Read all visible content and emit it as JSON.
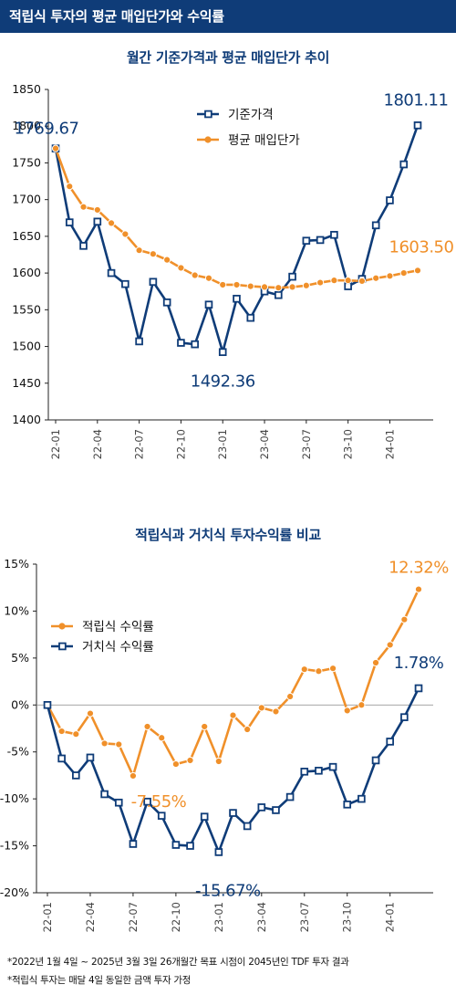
{
  "banner": {
    "title": "적립식 투자의 평균 매입단가와 수익률"
  },
  "colors": {
    "navy": "#0f3c78",
    "orange": "#f0902a",
    "axis": "#222222",
    "grid": "#d9d9d9",
    "banner": "#0f3c78"
  },
  "chart_data": [
    {
      "type": "line",
      "title": "월간 기준가격과 평균 매입단가 추이",
      "xlabel": "",
      "ylabel": "",
      "ylim": [
        1400,
        1850
      ],
      "yticks": [
        "1850",
        "1800",
        "1750",
        "1700",
        "1650",
        "1600",
        "1550",
        "1500",
        "1450",
        "1400"
      ],
      "x_tick_labels": [
        "22-01",
        "22-04",
        "22-07",
        "22-10",
        "23-01",
        "23-04",
        "23-07",
        "23-10",
        "24-01"
      ],
      "grid": false,
      "legend": "top-center",
      "x": [
        "22-01",
        "22-02",
        "22-03",
        "22-04",
        "22-05",
        "22-06",
        "22-07",
        "22-08",
        "22-09",
        "22-10",
        "22-11",
        "22-12",
        "23-01",
        "23-02",
        "23-03",
        "23-04",
        "23-05",
        "23-06",
        "23-07",
        "23-08",
        "23-09",
        "23-10",
        "23-11",
        "23-12",
        "24-01",
        "24-02",
        "24-03"
      ],
      "series": [
        {
          "name": "기준가격",
          "color": "#0f3c78",
          "marker": "square",
          "values": [
            1769.67,
            1669,
            1637,
            1670,
            1600,
            1585,
            1507,
            1588,
            1560,
            1505,
            1503,
            1557,
            1492.36,
            1565,
            1539,
            1575,
            1570,
            1595,
            1644,
            1645,
            1652,
            1582,
            1592,
            1665,
            1699,
            1748,
            1801.11
          ]
        },
        {
          "name": "평균 매입단가",
          "color": "#f0902a",
          "marker": "circle",
          "values": [
            1769.67,
            1718,
            1690,
            1686,
            1668,
            1653,
            1631,
            1626,
            1618,
            1607,
            1597,
            1593,
            1584,
            1584,
            1582,
            1581,
            1580,
            1581,
            1583,
            1587,
            1590,
            1590,
            1589,
            1593,
            1596,
            1600,
            1603.5
          ]
        }
      ],
      "annotations": [
        {
          "text": "1769.67",
          "series": 0,
          "index": 0,
          "color": "#0f3c78"
        },
        {
          "text": "1492.36",
          "series": 0,
          "index": 12,
          "color": "#0f3c78"
        },
        {
          "text": "1801.11",
          "series": 0,
          "index": 26,
          "color": "#0f3c78"
        },
        {
          "text": "1603.50",
          "series": 1,
          "index": 26,
          "color": "#f0902a"
        }
      ]
    },
    {
      "type": "line",
      "title": "적립식과 거치식 투자수익률 비교",
      "xlabel": "",
      "ylabel": "",
      "ylim": [
        -20,
        15
      ],
      "yticks": [
        "15%",
        "10%",
        "5%",
        "0%",
        "-5%",
        "-10%",
        "-15%",
        "-20%"
      ],
      "x_tick_labels": [
        "22-01",
        "22-04",
        "22-07",
        "22-10",
        "23-01",
        "23-04",
        "23-07",
        "23-10",
        "24-01"
      ],
      "grid": false,
      "legend": "top-left",
      "x": [
        "22-01",
        "22-02",
        "22-03",
        "22-04",
        "22-05",
        "22-06",
        "22-07",
        "22-08",
        "22-09",
        "22-10",
        "22-11",
        "22-12",
        "23-01",
        "23-02",
        "23-03",
        "23-04",
        "23-05",
        "23-06",
        "23-07",
        "23-08",
        "23-09",
        "23-10",
        "23-11",
        "23-12",
        "24-01",
        "24-02",
        "24-03"
      ],
      "series": [
        {
          "name": "적립식 수익률",
          "color": "#f0902a",
          "marker": "circle",
          "values": [
            0,
            -2.8,
            -3.1,
            -0.9,
            -4.1,
            -4.2,
            -7.55,
            -2.3,
            -3.5,
            -6.3,
            -5.9,
            -2.3,
            -6.0,
            -1.1,
            -2.6,
            -0.3,
            -0.7,
            0.9,
            3.8,
            3.6,
            3.9,
            -0.6,
            0,
            4.5,
            6.4,
            9.1,
            12.32
          ]
        },
        {
          "name": "거치식 수익률",
          "color": "#0f3c78",
          "marker": "square",
          "values": [
            0,
            -5.7,
            -7.5,
            -5.6,
            -9.5,
            -10.4,
            -14.8,
            -10.3,
            -11.8,
            -14.9,
            -15.0,
            -11.9,
            -15.67,
            -11.5,
            -12.9,
            -10.9,
            -11.2,
            -9.8,
            -7.1,
            -7.0,
            -6.6,
            -10.6,
            -10.0,
            -5.9,
            -3.9,
            -1.3,
            1.78
          ]
        }
      ],
      "annotations": [
        {
          "text": "12.32%",
          "series": 0,
          "index": 26,
          "color": "#f0902a"
        },
        {
          "text": "-7.55%",
          "series": 0,
          "index": 6,
          "color": "#f0902a"
        },
        {
          "text": "1.78%",
          "series": 1,
          "index": 26,
          "color": "#0f3c78"
        },
        {
          "text": "-15.67%",
          "series": 1,
          "index": 12,
          "color": "#0f3c78"
        }
      ]
    }
  ],
  "footnotes": [
    "*2022년 1월 4일 ~ 2025년 3월 3일 26개월간 목표 시점이 2045년인 TDF 투자 결과",
    "*적립식 투자는 매달 4일 동일한 금액 투자 가정"
  ]
}
